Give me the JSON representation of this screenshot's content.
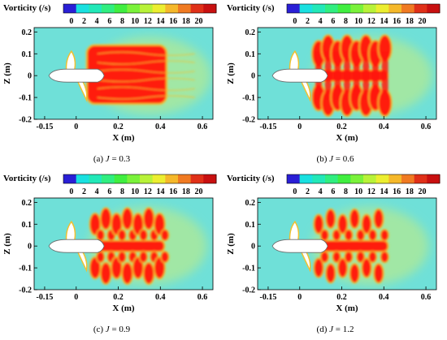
{
  "colorbar": {
    "title": "Vorticity (/s)",
    "ticks": [
      "0",
      "2",
      "4",
      "6",
      "8",
      "10",
      "12",
      "14",
      "16",
      "18",
      "20"
    ],
    "colors": [
      "#2a1fd6",
      "#19e0e0",
      "#22e8b8",
      "#30ee80",
      "#40ee40",
      "#7af23a",
      "#b8f238",
      "#ecee30",
      "#f5b82a",
      "#f07a22",
      "#e03018",
      "#c81010"
    ]
  },
  "axes": {
    "x_label": "X (m)",
    "z_label": "Z (m)",
    "x_ticks": [
      "-0.15",
      "0",
      "0.2",
      "0.4",
      "0.6"
    ],
    "z_ticks": [
      "0.2",
      "0.1",
      "0",
      "-0.1",
      "-0.2"
    ]
  },
  "field_colors": {
    "background": "#6fe0d8",
    "halo": "#a6e8a0",
    "core": "#ff1a10",
    "edge": "#f0c030",
    "hull": "#ffffff"
  },
  "panels": [
    {
      "caption_prefix": "(a) ",
      "caption_var": "J",
      "caption_value": " = 0.3",
      "advance_ratio": 0.3
    },
    {
      "caption_prefix": "(b) ",
      "caption_var": "J",
      "caption_value": " = 0.6",
      "advance_ratio": 0.6
    },
    {
      "caption_prefix": "(c) ",
      "caption_var": "J",
      "caption_value": " = 0.9",
      "advance_ratio": 0.9
    },
    {
      "caption_prefix": "(d) ",
      "caption_var": "J",
      "caption_value": " = 1.2",
      "advance_ratio": 1.2
    }
  ]
}
